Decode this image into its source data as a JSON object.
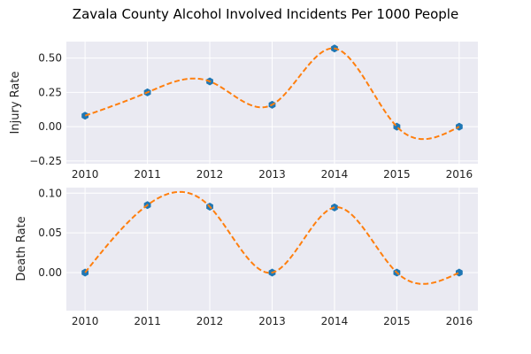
{
  "chart_data": {
    "suptitle": "Zavala County Alcohol Involved Incidents Per 1000 People",
    "panels": [
      {
        "type": "scatter",
        "ylabel": "Injury Rate",
        "x": [
          2010,
          2011,
          2012,
          2013,
          2014,
          2015,
          2016
        ],
        "y": [
          0.08,
          0.25,
          0.33,
          0.16,
          0.57,
          0.0,
          0.0
        ],
        "xlim": [
          2009.7,
          2016.3
        ],
        "ylim": [
          -0.27,
          0.62
        ],
        "xticks": [
          "2010",
          "2011",
          "2012",
          "2013",
          "2014",
          "2015",
          "2016"
        ],
        "yticks": [
          -0.25,
          0.0,
          0.25,
          0.5
        ],
        "ytick_labels": [
          "−0.25",
          "0.00",
          "0.25",
          "0.50"
        ],
        "marker_color": "#1f77b4",
        "fit_color": "#ff7f0e",
        "fit_style": "dashed smooth interpolating curve",
        "grid": true
      },
      {
        "type": "scatter",
        "ylabel": "Death Rate",
        "x": [
          2010,
          2011,
          2012,
          2013,
          2014,
          2015,
          2016
        ],
        "y": [
          0.0,
          0.085,
          0.083,
          0.0,
          0.082,
          0.0,
          0.0
        ],
        "xlim": [
          2009.7,
          2016.3
        ],
        "ylim": [
          -0.048,
          0.107
        ],
        "xticks": [
          "2010",
          "2011",
          "2012",
          "2013",
          "2014",
          "2015",
          "2016"
        ],
        "yticks": [
          0.0,
          0.05,
          0.1
        ],
        "ytick_labels": [
          "0.00",
          "0.05",
          "0.10"
        ],
        "marker_color": "#1f77b4",
        "fit_color": "#ff7f0e",
        "fit_style": "dashed smooth interpolating curve",
        "grid": true
      }
    ],
    "background": "#eaeaf2"
  }
}
